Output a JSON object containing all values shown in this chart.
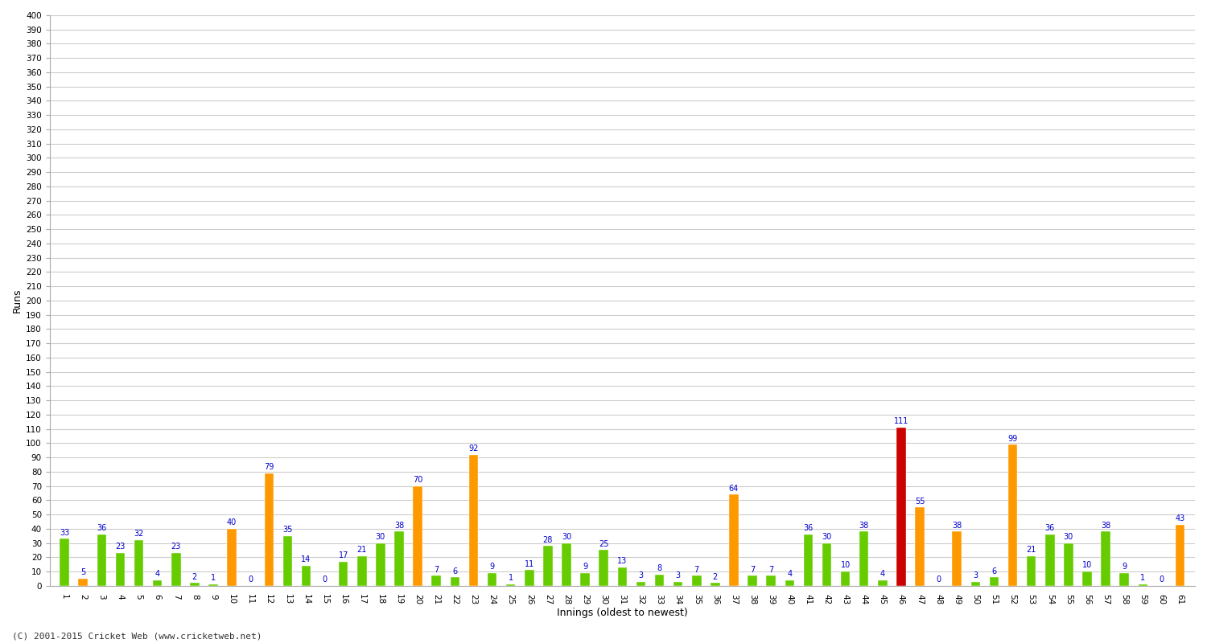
{
  "xlabel": "Innings (oldest to newest)",
  "ylabel": "Runs",
  "ylim": [
    0,
    400
  ],
  "yticks": [
    0,
    10,
    20,
    30,
    40,
    50,
    60,
    70,
    80,
    90,
    100,
    110,
    120,
    130,
    140,
    150,
    160,
    170,
    180,
    190,
    200,
    210,
    220,
    230,
    240,
    250,
    260,
    270,
    280,
    290,
    300,
    310,
    320,
    330,
    340,
    350,
    360,
    370,
    380,
    390,
    400
  ],
  "innings_labels": [
    "1",
    "2",
    "3",
    "4",
    "5",
    "6",
    "7",
    "8",
    "9",
    "10",
    "11",
    "12",
    "13",
    "14",
    "15",
    "16",
    "17",
    "18",
    "19",
    "20",
    "21",
    "22",
    "23",
    "24",
    "25",
    "26",
    "27",
    "28",
    "29",
    "30",
    "31",
    "32",
    "33",
    "34",
    "35",
    "36",
    "37",
    "38",
    "39",
    "40",
    "41",
    "42",
    "43",
    "44",
    "45",
    "46",
    "47",
    "48",
    "49",
    "50",
    "51",
    "52",
    "53",
    "54",
    "55",
    "56",
    "57",
    "58",
    "59",
    "60",
    "61"
  ],
  "bar_values": [
    33,
    5,
    36,
    23,
    32,
    4,
    23,
    2,
    1,
    40,
    0,
    79,
    35,
    14,
    0,
    17,
    21,
    30,
    38,
    70,
    7,
    6,
    92,
    9,
    1,
    11,
    28,
    30,
    9,
    25,
    13,
    3,
    8,
    3,
    7,
    2,
    64,
    7,
    7,
    4,
    36,
    30,
    10,
    38,
    4,
    111,
    55,
    0,
    38,
    3,
    6,
    99,
    21,
    36,
    30,
    10,
    38,
    9,
    1,
    0,
    43
  ],
  "bar_colors": [
    "#66cc00",
    "#ff9900",
    "#66cc00",
    "#66cc00",
    "#66cc00",
    "#66cc00",
    "#66cc00",
    "#66cc00",
    "#66cc00",
    "#ff9900",
    "#66cc00",
    "#ff9900",
    "#66cc00",
    "#66cc00",
    "#66cc00",
    "#66cc00",
    "#66cc00",
    "#66cc00",
    "#66cc00",
    "#ff9900",
    "#66cc00",
    "#66cc00",
    "#ff9900",
    "#66cc00",
    "#66cc00",
    "#66cc00",
    "#66cc00",
    "#66cc00",
    "#66cc00",
    "#66cc00",
    "#66cc00",
    "#66cc00",
    "#66cc00",
    "#66cc00",
    "#66cc00",
    "#66cc00",
    "#ff9900",
    "#66cc00",
    "#66cc00",
    "#66cc00",
    "#66cc00",
    "#66cc00",
    "#66cc00",
    "#66cc00",
    "#66cc00",
    "#cc0000",
    "#ff9900",
    "#66cc00",
    "#ff9900",
    "#66cc00",
    "#66cc00",
    "#ff9900",
    "#66cc00",
    "#66cc00",
    "#66cc00",
    "#66cc00",
    "#66cc00",
    "#66cc00",
    "#66cc00",
    "#66cc00",
    "#ff9900"
  ],
  "background_color": "#ffffff",
  "grid_color": "#cccccc",
  "bar_width": 0.5,
  "figwidth": 15.0,
  "figheight": 8.0,
  "dpi": 100,
  "label_color": "#0000cc",
  "footer": "(C) 2001-2015 Cricket Web (www.cricketweb.net)"
}
